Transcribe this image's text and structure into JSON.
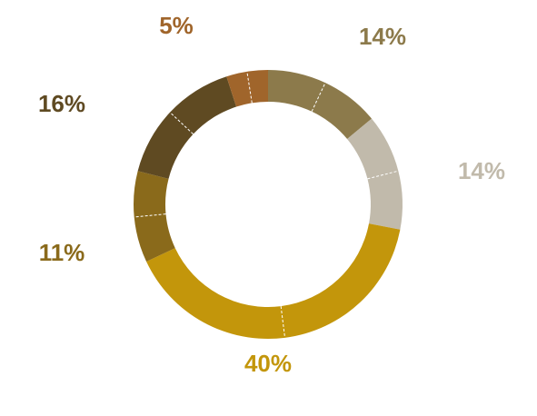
{
  "chart_data": {
    "type": "donut",
    "categories": [
      null,
      null,
      null,
      null,
      null,
      null
    ],
    "values": [
      14,
      14,
      40,
      11,
      16,
      5
    ],
    "value_labels": [
      "14%",
      "14%",
      "40%",
      "11%",
      "16%",
      "5%"
    ],
    "colors": [
      "#8c7a4b",
      "#c1baab",
      "#c3960b",
      "#8a6a1b",
      "#5f4a22",
      "#a0652b"
    ]
  }
}
